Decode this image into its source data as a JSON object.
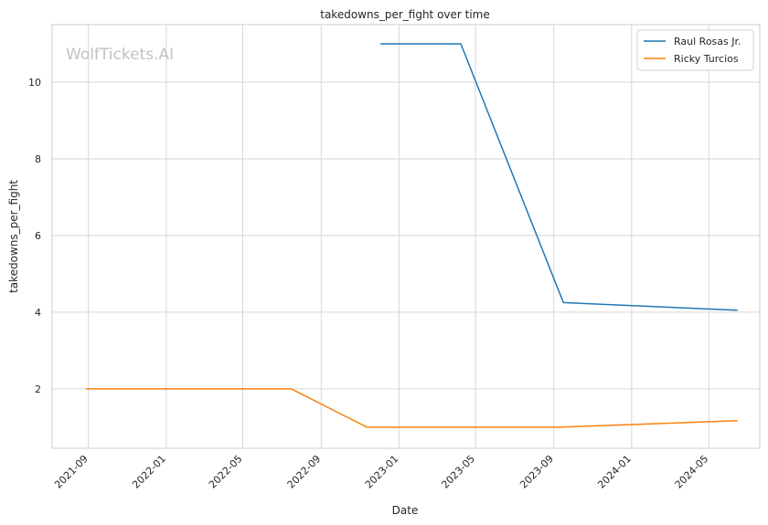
{
  "chart_data": {
    "type": "line",
    "title": "takedowns_per_fight over time",
    "xlabel": "Date",
    "ylabel": "takedowns_per_fight",
    "watermark": "WolfTickets.AI",
    "x_range": [
      "2021-07-06",
      "2024-07-20"
    ],
    "ylim": [
      0.45,
      11.5
    ],
    "x_ticks": [
      {
        "date": "2021-09-01",
        "label": "2021-09"
      },
      {
        "date": "2022-01-01",
        "label": "2022-01"
      },
      {
        "date": "2022-05-01",
        "label": "2022-05"
      },
      {
        "date": "2022-09-01",
        "label": "2022-09"
      },
      {
        "date": "2023-01-01",
        "label": "2023-01"
      },
      {
        "date": "2023-05-01",
        "label": "2023-05"
      },
      {
        "date": "2023-09-01",
        "label": "2023-09"
      },
      {
        "date": "2024-01-01",
        "label": "2024-01"
      },
      {
        "date": "2024-05-01",
        "label": "2024-05"
      }
    ],
    "y_ticks": [
      2,
      4,
      6,
      8,
      10
    ],
    "grid": true,
    "legend_position": "top-right",
    "series": [
      {
        "name": "Raul Rosas Jr.",
        "color": "#1f77b4",
        "points": [
          {
            "x": "2022-12-03",
            "y": 11.0
          },
          {
            "x": "2023-04-08",
            "y": 11.0
          },
          {
            "x": "2023-09-16",
            "y": 4.25
          },
          {
            "x": "2024-06-15",
            "y": 4.05
          }
        ]
      },
      {
        "name": "Ricky Turcios",
        "color": "#ff7f0e",
        "points": [
          {
            "x": "2021-08-28",
            "y": 2.0
          },
          {
            "x": "2022-07-16",
            "y": 2.0
          },
          {
            "x": "2022-11-12",
            "y": 1.0
          },
          {
            "x": "2023-09-09",
            "y": 1.0
          },
          {
            "x": "2024-06-15",
            "y": 1.17
          }
        ]
      }
    ]
  }
}
